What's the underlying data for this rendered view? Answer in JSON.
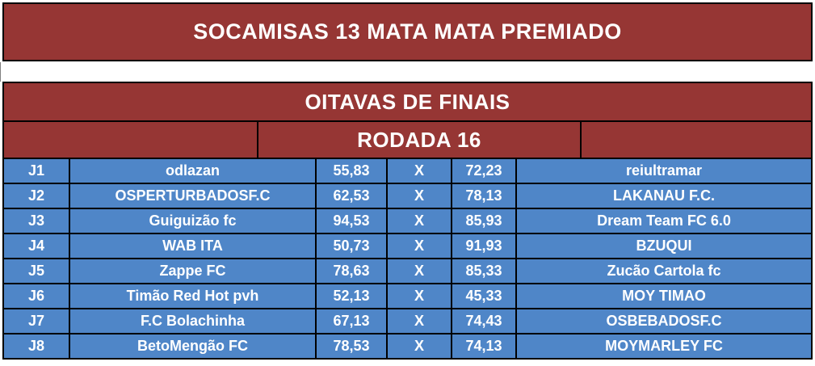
{
  "title_bar": {
    "text": "SOCAMISAS 13 MATA MATA PREMIADO"
  },
  "bracket": {
    "stage_header": "OITAVAS DE FINAIS",
    "round_header": "RODADA 16",
    "versus_label": "X"
  },
  "colors": {
    "header_bg": "#963634",
    "match_bg": "#4F86C8",
    "border": "#000000",
    "text": "#FFFFFF"
  },
  "matches": [
    {
      "id": "J1",
      "home_team": "odlazan",
      "home_score": "55,83",
      "away_score": "72,23",
      "away_team": "reiultramar"
    },
    {
      "id": "J2",
      "home_team": "OSPERTURBADOSF.C",
      "home_score": "62,53",
      "away_score": "78,13",
      "away_team": "LAKANAU F.C."
    },
    {
      "id": "J3",
      "home_team": "Guiguizão fc",
      "home_score": "94,53",
      "away_score": "85,93",
      "away_team": "Dream Team FC 6.0"
    },
    {
      "id": "J4",
      "home_team": "WAB ITA",
      "home_score": "50,73",
      "away_score": "91,93",
      "away_team": "BZUQUI"
    },
    {
      "id": "J5",
      "home_team": "Zappe FC",
      "home_score": "78,63",
      "away_score": "85,33",
      "away_team": "Zucão Cartola fc"
    },
    {
      "id": "J6",
      "home_team": "Timão Red Hot pvh",
      "home_score": "52,13",
      "away_score": "45,33",
      "away_team": "MOY TIMAO"
    },
    {
      "id": "J7",
      "home_team": "F.C Bolachinha",
      "home_score": "67,13",
      "away_score": "74,43",
      "away_team": "OSBEBADOSF.C"
    },
    {
      "id": "J8",
      "home_team": "BetoMengão FC",
      "home_score": "78,53",
      "away_score": "74,13",
      "away_team": "MOYMARLEY FC"
    }
  ]
}
